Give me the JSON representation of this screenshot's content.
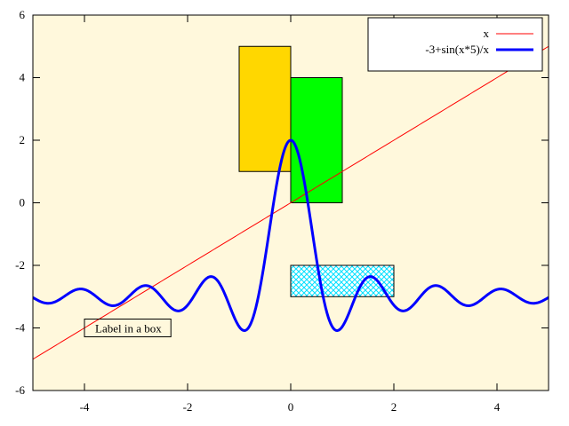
{
  "chart_data": {
    "type": "line",
    "title": "",
    "xlabel": "",
    "ylabel": "",
    "xlim": [
      -5,
      5
    ],
    "ylim": [
      -6,
      6
    ],
    "x_ticks": [
      -4,
      -2,
      0,
      2,
      4
    ],
    "y_ticks": [
      -6,
      -4,
      -2,
      0,
      2,
      4,
      6
    ],
    "background_color": "#fff8dc",
    "series": [
      {
        "name": "x",
        "function": "x",
        "color": "#ff0000",
        "line_width": "thin"
      },
      {
        "name": "-3+sin(x*5)/x",
        "function": "-3+sin(x*5)/x",
        "color": "#0000ff",
        "line_width": "thick"
      }
    ],
    "rectangles": [
      {
        "x0": -1,
        "x1": 0,
        "y0": 1,
        "y1": 5,
        "fill": "#ffd700",
        "pattern": "solid"
      },
      {
        "x0": 0,
        "x1": 1,
        "y0": 0,
        "y1": 4,
        "fill": "#00ff00",
        "pattern": "solid"
      },
      {
        "x0": 0,
        "x1": 2,
        "y0": -3,
        "y1": -2,
        "fill": "#00ffff",
        "pattern": "crosshatch"
      }
    ],
    "annotations": [
      {
        "text": "Label in a box",
        "x": -4,
        "y": -4,
        "boxed": true
      }
    ],
    "legend": {
      "placement": "top-right",
      "boxed": true
    }
  }
}
